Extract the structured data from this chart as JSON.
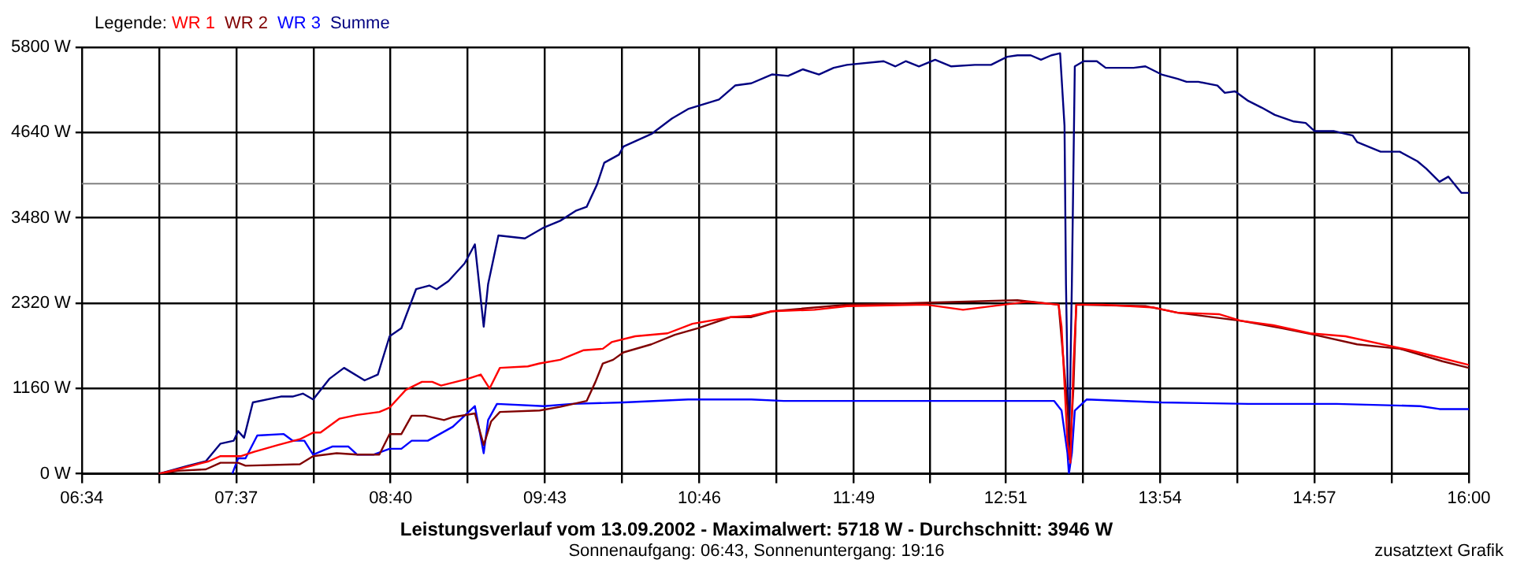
{
  "chart_data": {
    "type": "line",
    "title": "Leistungsverlauf vom 13.09.2002 - Maximalwert: 5718 W - Durchschnitt: 3946 W",
    "subtitle": "Sonnenaufgang: 06:43, Sonnenuntergang: 19:16",
    "annotations": [
      "zusatztext Grafik"
    ],
    "legend_title": "Legende:",
    "legend": "top left",
    "grid": true,
    "marker": "none",
    "line_style": "solid",
    "xlim": [
      6.5667,
      16
    ],
    "xticks": [
      {
        "value": 6.5667,
        "label": "06:34"
      },
      {
        "value": 7.0917,
        "label": null
      },
      {
        "value": 7.6167,
        "label": "07:37"
      },
      {
        "value": 8.1417,
        "label": null
      },
      {
        "value": 8.6667,
        "label": "08:40"
      },
      {
        "value": 9.1917,
        "label": null
      },
      {
        "value": 9.7167,
        "label": "09:43"
      },
      {
        "value": 10.2417,
        "label": null
      },
      {
        "value": 10.7667,
        "label": "10:46"
      },
      {
        "value": 11.2917,
        "label": null
      },
      {
        "value": 11.8167,
        "label": "11:49"
      },
      {
        "value": 12.3333,
        "label": null
      },
      {
        "value": 12.85,
        "label": "12:51"
      },
      {
        "value": 13.375,
        "label": null
      },
      {
        "value": 13.9,
        "label": "13:54"
      },
      {
        "value": 14.425,
        "label": null
      },
      {
        "value": 14.95,
        "label": "14:57"
      },
      {
        "value": 15.475,
        "label": null
      },
      {
        "value": 16,
        "label": "16:00"
      }
    ],
    "ylim": [
      0,
      5800
    ],
    "yticks": [
      {
        "value": 0,
        "label": "0 W"
      },
      {
        "value": 1160,
        "label": "1160 W"
      },
      {
        "value": 2320,
        "label": "2320 W"
      },
      {
        "value": 3480,
        "label": "3480 W"
      },
      {
        "value": 4640,
        "label": "4640 W"
      },
      {
        "value": 5800,
        "label": "5800 W"
      }
    ],
    "ref_lines": [
      {
        "axis": "y",
        "value": 3946,
        "color": "#808080"
      }
    ],
    "series": [
      {
        "name": "WR 1",
        "color": "#ff0000",
        "x": [
          7.09,
          7.22,
          7.43,
          7.51,
          7.65,
          7.74,
          7.9,
          8.05,
          8.14,
          8.19,
          8.32,
          8.44,
          8.59,
          8.66,
          8.77,
          8.88,
          8.95,
          9.01,
          9.19,
          9.28,
          9.34,
          9.41,
          9.6,
          9.68,
          9.82,
          9.98,
          10.11,
          10.17,
          10.33,
          10.55,
          10.72,
          10.98,
          11.12,
          11.26,
          11.55,
          11.77,
          12.31,
          12.56,
          13.0,
          13.21,
          13.23,
          13.27,
          13.29,
          13.31,
          13.33,
          13.51,
          13.86,
          14.02,
          14.3,
          14.45,
          14.67,
          14.92,
          15.16,
          15.46,
          15.6,
          15.82,
          16.0
        ],
        "values": [
          0,
          60,
          170,
          240,
          240,
          300,
          390,
          470,
          560,
          560,
          750,
          800,
          840,
          900,
          1140,
          1250,
          1250,
          1200,
          1290,
          1350,
          1160,
          1440,
          1460,
          1500,
          1550,
          1680,
          1700,
          1790,
          1870,
          1910,
          2040,
          2130,
          2150,
          2210,
          2230,
          2280,
          2300,
          2230,
          2340,
          2300,
          2000,
          430,
          150,
          1440,
          2300,
          2300,
          2260,
          2190,
          2170,
          2080,
          2020,
          1910,
          1870,
          1740,
          1680,
          1570,
          1480
        ]
      },
      {
        "name": "WR 2",
        "color": "#800000",
        "x": [
          7.09,
          7.22,
          7.41,
          7.51,
          7.63,
          7.68,
          8.05,
          8.14,
          8.3,
          8.44,
          8.59,
          8.66,
          8.74,
          8.81,
          8.9,
          9.03,
          9.09,
          9.24,
          9.3,
          9.35,
          9.41,
          9.68,
          9.82,
          10.0,
          10.06,
          10.11,
          10.18,
          10.25,
          10.44,
          10.6,
          10.76,
          10.98,
          11.12,
          11.26,
          11.77,
          12.2,
          12.93,
          13.21,
          13.26,
          13.29,
          13.31,
          13.33,
          13.8,
          14.02,
          14.45,
          14.73,
          14.95,
          15.24,
          15.53,
          15.82,
          16.0
        ],
        "values": [
          0,
          40,
          60,
          150,
          150,
          110,
          130,
          240,
          280,
          260,
          260,
          540,
          540,
          790,
          790,
          730,
          770,
          820,
          390,
          710,
          840,
          860,
          910,
          990,
          1250,
          1500,
          1550,
          1650,
          1760,
          1890,
          1980,
          2130,
          2130,
          2210,
          2300,
          2320,
          2360,
          2300,
          1140,
          430,
          1140,
          2300,
          2280,
          2190,
          2080,
          1980,
          1890,
          1760,
          1700,
          1530,
          1440
        ]
      },
      {
        "name": "WR 3",
        "color": "#0000ff",
        "x": [
          7.59,
          7.63,
          7.68,
          7.76,
          7.94,
          8.0,
          8.08,
          8.14,
          8.27,
          8.38,
          8.44,
          8.55,
          8.66,
          8.74,
          8.81,
          8.92,
          9.09,
          9.24,
          9.3,
          9.33,
          9.39,
          9.71,
          9.9,
          10.25,
          10.69,
          11.12,
          11.34,
          12.2,
          13.18,
          13.23,
          13.27,
          13.28,
          13.3,
          13.32,
          13.4,
          13.91,
          14.5,
          15.1,
          15.67,
          15.8,
          16.0
        ],
        "values": [
          0,
          210,
          210,
          520,
          540,
          450,
          450,
          260,
          370,
          370,
          260,
          260,
          340,
          340,
          450,
          450,
          640,
          920,
          280,
          730,
          950,
          920,
          950,
          970,
          1010,
          1010,
          990,
          990,
          990,
          860,
          280,
          0,
          280,
          860,
          1010,
          970,
          950,
          950,
          920,
          880,
          880
        ]
      },
      {
        "name": "Summe",
        "color": "#000080",
        "x": [
          7.09,
          7.29,
          7.41,
          7.51,
          7.6,
          7.63,
          7.67,
          7.73,
          7.92,
          8.0,
          8.07,
          8.14,
          8.25,
          8.35,
          8.49,
          8.58,
          8.66,
          8.74,
          8.84,
          8.93,
          8.98,
          9.06,
          9.17,
          9.24,
          9.3,
          9.33,
          9.4,
          9.58,
          9.71,
          9.82,
          9.93,
          10.0,
          10.07,
          10.12,
          10.22,
          10.25,
          10.44,
          10.58,
          10.69,
          10.9,
          11.01,
          11.12,
          11.26,
          11.37,
          11.47,
          11.58,
          11.68,
          11.77,
          12.02,
          12.1,
          12.17,
          12.26,
          12.37,
          12.48,
          12.64,
          12.75,
          12.86,
          12.93,
          13.02,
          13.09,
          13.16,
          13.22,
          13.25,
          13.26,
          13.28,
          13.3,
          13.32,
          13.38,
          13.47,
          13.53,
          13.72,
          13.8,
          13.91,
          14.02,
          14.08,
          14.16,
          14.29,
          14.34,
          14.41,
          14.5,
          14.59,
          14.68,
          14.81,
          14.89,
          14.95,
          15.08,
          15.21,
          15.24,
          15.4,
          15.53,
          15.65,
          15.71,
          15.8,
          15.86,
          15.95,
          16.0
        ],
        "values": [
          0,
          110,
          170,
          410,
          450,
          580,
          490,
          970,
          1050,
          1050,
          1090,
          1010,
          1290,
          1440,
          1270,
          1350,
          1870,
          1980,
          2510,
          2560,
          2510,
          2620,
          2860,
          3120,
          2000,
          2580,
          3240,
          3200,
          3350,
          3440,
          3580,
          3630,
          3930,
          4230,
          4340,
          4450,
          4620,
          4830,
          4960,
          5090,
          5280,
          5310,
          5430,
          5410,
          5500,
          5430,
          5520,
          5560,
          5610,
          5540,
          5610,
          5540,
          5630,
          5540,
          5560,
          5560,
          5670,
          5690,
          5690,
          5630,
          5690,
          5718,
          4730,
          2580,
          200,
          2580,
          5540,
          5610,
          5610,
          5520,
          5520,
          5540,
          5430,
          5370,
          5330,
          5330,
          5280,
          5180,
          5200,
          5070,
          4980,
          4880,
          4790,
          4770,
          4660,
          4660,
          4600,
          4510,
          4380,
          4380,
          4250,
          4150,
          3970,
          4040,
          3820,
          3820
        ]
      }
    ]
  }
}
